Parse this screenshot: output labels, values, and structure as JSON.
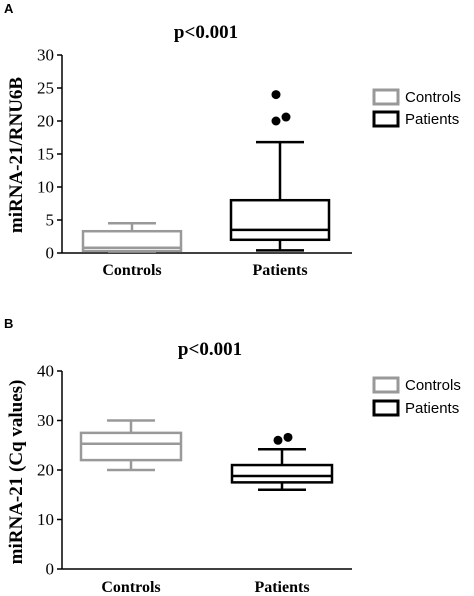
{
  "chart_data": [
    {
      "type": "box",
      "panel": "A",
      "title": "p<0.001",
      "xlabel": "",
      "ylabel": "miRNA-21/RNU6B",
      "ylim": [
        0,
        30
      ],
      "yticks": [
        "0",
        "5",
        "10",
        "15",
        "20",
        "25",
        "30"
      ],
      "categories": [
        "Controls",
        "Patients"
      ],
      "legend": {
        "position": "right",
        "entries": [
          {
            "label": "Controls",
            "color": "#999999"
          },
          {
            "label": "Patients",
            "color": "#000000"
          }
        ]
      },
      "boxes": [
        {
          "name": "Controls",
          "color": "#999999",
          "min": 0.2,
          "q1": 0.3,
          "median": 0.8,
          "q3": 3.3,
          "max": 4.5,
          "outliers": []
        },
        {
          "name": "Patients",
          "color": "#000000",
          "min": 0.4,
          "q1": 2.0,
          "median": 3.5,
          "q3": 8.0,
          "max": 16.8,
          "outliers": [
            20.0,
            20.6,
            24.0
          ]
        }
      ]
    },
    {
      "type": "box",
      "panel": "B",
      "title": "p<0.001",
      "xlabel": "",
      "ylabel": "miRNA-21  (Cq values)",
      "ylim": [
        0,
        40
      ],
      "yticks": [
        "0",
        "10",
        "20",
        "30",
        "40"
      ],
      "categories": [
        "Controls",
        "Patients"
      ],
      "legend": {
        "position": "right",
        "entries": [
          {
            "label": "Controls",
            "color": "#999999"
          },
          {
            "label": "Patients",
            "color": "#000000"
          }
        ]
      },
      "boxes": [
        {
          "name": "Controls",
          "color": "#999999",
          "min": 20.0,
          "q1": 22.0,
          "median": 25.3,
          "q3": 27.5,
          "max": 30.0,
          "outliers": []
        },
        {
          "name": "Patients",
          "color": "#000000",
          "min": 16.0,
          "q1": 17.5,
          "median": 18.8,
          "q3": 21.0,
          "max": 24.2,
          "outliers": [
            26.0,
            26.6
          ]
        }
      ]
    }
  ]
}
